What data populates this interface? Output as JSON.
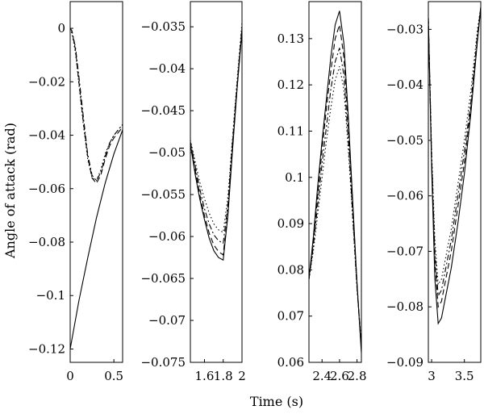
{
  "figure": {
    "ylabel": "Angle of attack (rad)",
    "xlabel": "Time (s)",
    "line_color": "#000000"
  },
  "chart_data": [
    {
      "type": "line",
      "xlim": [
        0,
        0.6
      ],
      "ylim": [
        -0.125,
        0.01
      ],
      "xticks": [
        0,
        0.5
      ],
      "xtick_labels": [
        "0",
        "0.5"
      ],
      "yticks": [
        0,
        -0.02,
        -0.04,
        -0.06,
        -0.08,
        -0.1,
        -0.12
      ],
      "ytick_labels": [
        "0",
        "−0.02",
        "−0.04",
        "−0.06",
        "−0.08",
        "−0.1",
        "−0.12"
      ],
      "series": [
        {
          "style": "solid",
          "x": [
            0,
            0.1,
            0.2,
            0.3,
            0.4,
            0.5,
            0.6
          ],
          "y": [
            -0.12,
            -0.102,
            -0.086,
            -0.071,
            -0.058,
            -0.047,
            -0.038
          ]
        },
        {
          "style": "dashed",
          "x": [
            0,
            0.02,
            0.06,
            0.1,
            0.15,
            0.2,
            0.25,
            0.3,
            0.35,
            0.4,
            0.45,
            0.5,
            0.55,
            0.6
          ],
          "y": [
            0,
            -0.001,
            -0.008,
            -0.02,
            -0.035,
            -0.048,
            -0.056,
            -0.058,
            -0.055,
            -0.049,
            -0.044,
            -0.041,
            -0.039,
            -0.037
          ]
        },
        {
          "style": "dashdot",
          "x": [
            0,
            0.02,
            0.06,
            0.1,
            0.15,
            0.2,
            0.25,
            0.3,
            0.35,
            0.4,
            0.45,
            0.5,
            0.55,
            0.6
          ],
          "y": [
            0,
            -0.001,
            -0.007,
            -0.018,
            -0.033,
            -0.047,
            -0.055,
            -0.057,
            -0.054,
            -0.048,
            -0.043,
            -0.04,
            -0.038,
            -0.036
          ]
        },
        {
          "style": "dotted",
          "x": [
            0,
            0.02,
            0.06,
            0.1,
            0.15,
            0.2,
            0.25,
            0.3,
            0.35,
            0.4,
            0.45,
            0.5,
            0.55,
            0.6
          ],
          "y": [
            0,
            -0.002,
            -0.009,
            -0.021,
            -0.036,
            -0.049,
            -0.056,
            -0.057,
            -0.053,
            -0.047,
            -0.043,
            -0.04,
            -0.038,
            -0.036
          ]
        }
      ]
    },
    {
      "type": "line",
      "xlim": [
        1.45,
        2.0
      ],
      "ylim": [
        -0.075,
        -0.032
      ],
      "xticks": [
        1.6,
        1.8,
        2.0
      ],
      "xtick_labels": [
        "1.6",
        "1.8",
        "2"
      ],
      "yticks": [
        -0.035,
        -0.04,
        -0.045,
        -0.05,
        -0.055,
        -0.06,
        -0.065,
        -0.07,
        -0.075
      ],
      "ytick_labels": [
        "−0.035",
        "−0.04",
        "−0.045",
        "−0.05",
        "−0.055",
        "−0.06",
        "−0.065",
        "−0.07",
        "−0.075"
      ],
      "series": [
        {
          "style": "solid",
          "x": [
            1.45,
            1.5,
            1.55,
            1.6,
            1.65,
            1.7,
            1.75,
            1.8,
            1.85,
            1.9,
            1.95,
            2.0
          ],
          "y": [
            -0.049,
            -0.0525,
            -0.0555,
            -0.058,
            -0.0602,
            -0.0617,
            -0.0625,
            -0.0628,
            -0.0575,
            -0.0495,
            -0.042,
            -0.0355
          ]
        },
        {
          "style": "dashed",
          "x": [
            1.45,
            1.5,
            1.55,
            1.6,
            1.65,
            1.7,
            1.75,
            1.8,
            1.85,
            1.9,
            1.95,
            2.0
          ],
          "y": [
            -0.0488,
            -0.052,
            -0.055,
            -0.0575,
            -0.0596,
            -0.061,
            -0.0618,
            -0.0622,
            -0.057,
            -0.049,
            -0.042,
            -0.0352
          ]
        },
        {
          "style": "dashdot",
          "x": [
            1.45,
            1.5,
            1.55,
            1.6,
            1.65,
            1.7,
            1.75,
            1.8,
            1.85,
            1.9,
            1.95,
            2.0
          ],
          "y": [
            -0.0487,
            -0.0515,
            -0.0543,
            -0.0567,
            -0.0585,
            -0.0598,
            -0.0605,
            -0.0608,
            -0.0562,
            -0.0485,
            -0.0415,
            -0.035
          ]
        },
        {
          "style": "dotted",
          "x": [
            1.45,
            1.5,
            1.55,
            1.6,
            1.65,
            1.7,
            1.75,
            1.8,
            1.85,
            1.9,
            1.95,
            2.0
          ],
          "y": [
            -0.0485,
            -0.051,
            -0.0535,
            -0.0555,
            -0.0572,
            -0.0585,
            -0.0592,
            -0.0595,
            -0.0553,
            -0.048,
            -0.041,
            -0.0345
          ]
        }
      ]
    },
    {
      "type": "line",
      "xlim": [
        2.25,
        2.85
      ],
      "ylim": [
        0.06,
        0.138
      ],
      "xticks": [
        2.4,
        2.6,
        2.8
      ],
      "xtick_labels": [
        "2.4",
        "2.6",
        "2.8"
      ],
      "yticks": [
        0.13,
        0.12,
        0.11,
        0.1,
        0.09,
        0.08,
        0.07,
        0.06
      ],
      "ytick_labels": [
        "0.13",
        "0.12",
        "0.11",
        "0.1",
        "0.09",
        "0.08",
        "0.07",
        "0.06"
      ],
      "series": [
        {
          "style": "solid",
          "x": [
            2.25,
            2.3,
            2.35,
            2.4,
            2.45,
            2.5,
            2.55,
            2.6,
            2.65,
            2.7,
            2.75,
            2.8,
            2.85
          ],
          "y": [
            0.078,
            0.087,
            0.098,
            0.108,
            0.117,
            0.126,
            0.133,
            0.136,
            0.129,
            0.113,
            0.095,
            0.077,
            0.062
          ]
        },
        {
          "style": "dashed",
          "x": [
            2.25,
            2.3,
            2.35,
            2.4,
            2.45,
            2.5,
            2.55,
            2.6,
            2.65,
            2.7,
            2.75,
            2.8,
            2.85
          ],
          "y": [
            0.078,
            0.086,
            0.096,
            0.106,
            0.115,
            0.123,
            0.13,
            0.133,
            0.126,
            0.111,
            0.094,
            0.077,
            0.063
          ]
        },
        {
          "style": "dashdot",
          "x": [
            2.25,
            2.3,
            2.35,
            2.4,
            2.45,
            2.5,
            2.55,
            2.6,
            2.65,
            2.7,
            2.75,
            2.8,
            2.85
          ],
          "y": [
            0.078,
            0.085,
            0.094,
            0.103,
            0.111,
            0.119,
            0.125,
            0.128,
            0.122,
            0.108,
            0.092,
            0.076,
            0.063
          ]
        },
        {
          "style": "dotted",
          "x": [
            2.25,
            2.3,
            2.35,
            2.4,
            2.45,
            2.5,
            2.55,
            2.6,
            2.65,
            2.7,
            2.75,
            2.8,
            2.85
          ],
          "y": [
            0.078,
            0.084,
            0.092,
            0.1,
            0.108,
            0.115,
            0.121,
            0.124,
            0.119,
            0.106,
            0.091,
            0.076,
            0.064
          ]
        }
      ]
    },
    {
      "type": "line",
      "xlim": [
        2.95,
        3.75
      ],
      "ylim": [
        -0.09,
        -0.025
      ],
      "xticks": [
        3.0,
        3.5
      ],
      "xtick_labels": [
        "3",
        "3.5"
      ],
      "yticks": [
        -0.03,
        -0.04,
        -0.05,
        -0.06,
        -0.07,
        -0.08,
        -0.09
      ],
      "ytick_labels": [
        "−0.03",
        "−0.04",
        "−0.05",
        "−0.06",
        "−0.07",
        "−0.08",
        "−0.09"
      ],
      "series": [
        {
          "style": "solid",
          "x": [
            2.95,
            3.0,
            3.05,
            3.1,
            3.15,
            3.2,
            3.3,
            3.4,
            3.5,
            3.6,
            3.7,
            3.75
          ],
          "y": [
            -0.028,
            -0.055,
            -0.075,
            -0.083,
            -0.082,
            -0.079,
            -0.073,
            -0.065,
            -0.056,
            -0.045,
            -0.032,
            -0.026
          ]
        },
        {
          "style": "dashed",
          "x": [
            2.95,
            3.0,
            3.05,
            3.1,
            3.15,
            3.2,
            3.3,
            3.4,
            3.5,
            3.6,
            3.7,
            3.75
          ],
          "y": [
            -0.028,
            -0.054,
            -0.072,
            -0.08,
            -0.079,
            -0.076,
            -0.07,
            -0.062,
            -0.054,
            -0.044,
            -0.032,
            -0.026
          ]
        },
        {
          "style": "dashdot",
          "x": [
            2.95,
            3.0,
            3.05,
            3.1,
            3.15,
            3.2,
            3.3,
            3.4,
            3.5,
            3.6,
            3.7,
            3.75
          ],
          "y": [
            -0.028,
            -0.053,
            -0.07,
            -0.078,
            -0.077,
            -0.074,
            -0.068,
            -0.06,
            -0.052,
            -0.043,
            -0.031,
            -0.026
          ]
        },
        {
          "style": "dotted",
          "x": [
            2.95,
            3.0,
            3.05,
            3.1,
            3.15,
            3.2,
            3.3,
            3.4,
            3.5,
            3.6,
            3.7,
            3.75
          ],
          "y": [
            -0.028,
            -0.052,
            -0.068,
            -0.076,
            -0.075,
            -0.072,
            -0.066,
            -0.058,
            -0.05,
            -0.041,
            -0.03,
            -0.026
          ]
        }
      ]
    }
  ]
}
